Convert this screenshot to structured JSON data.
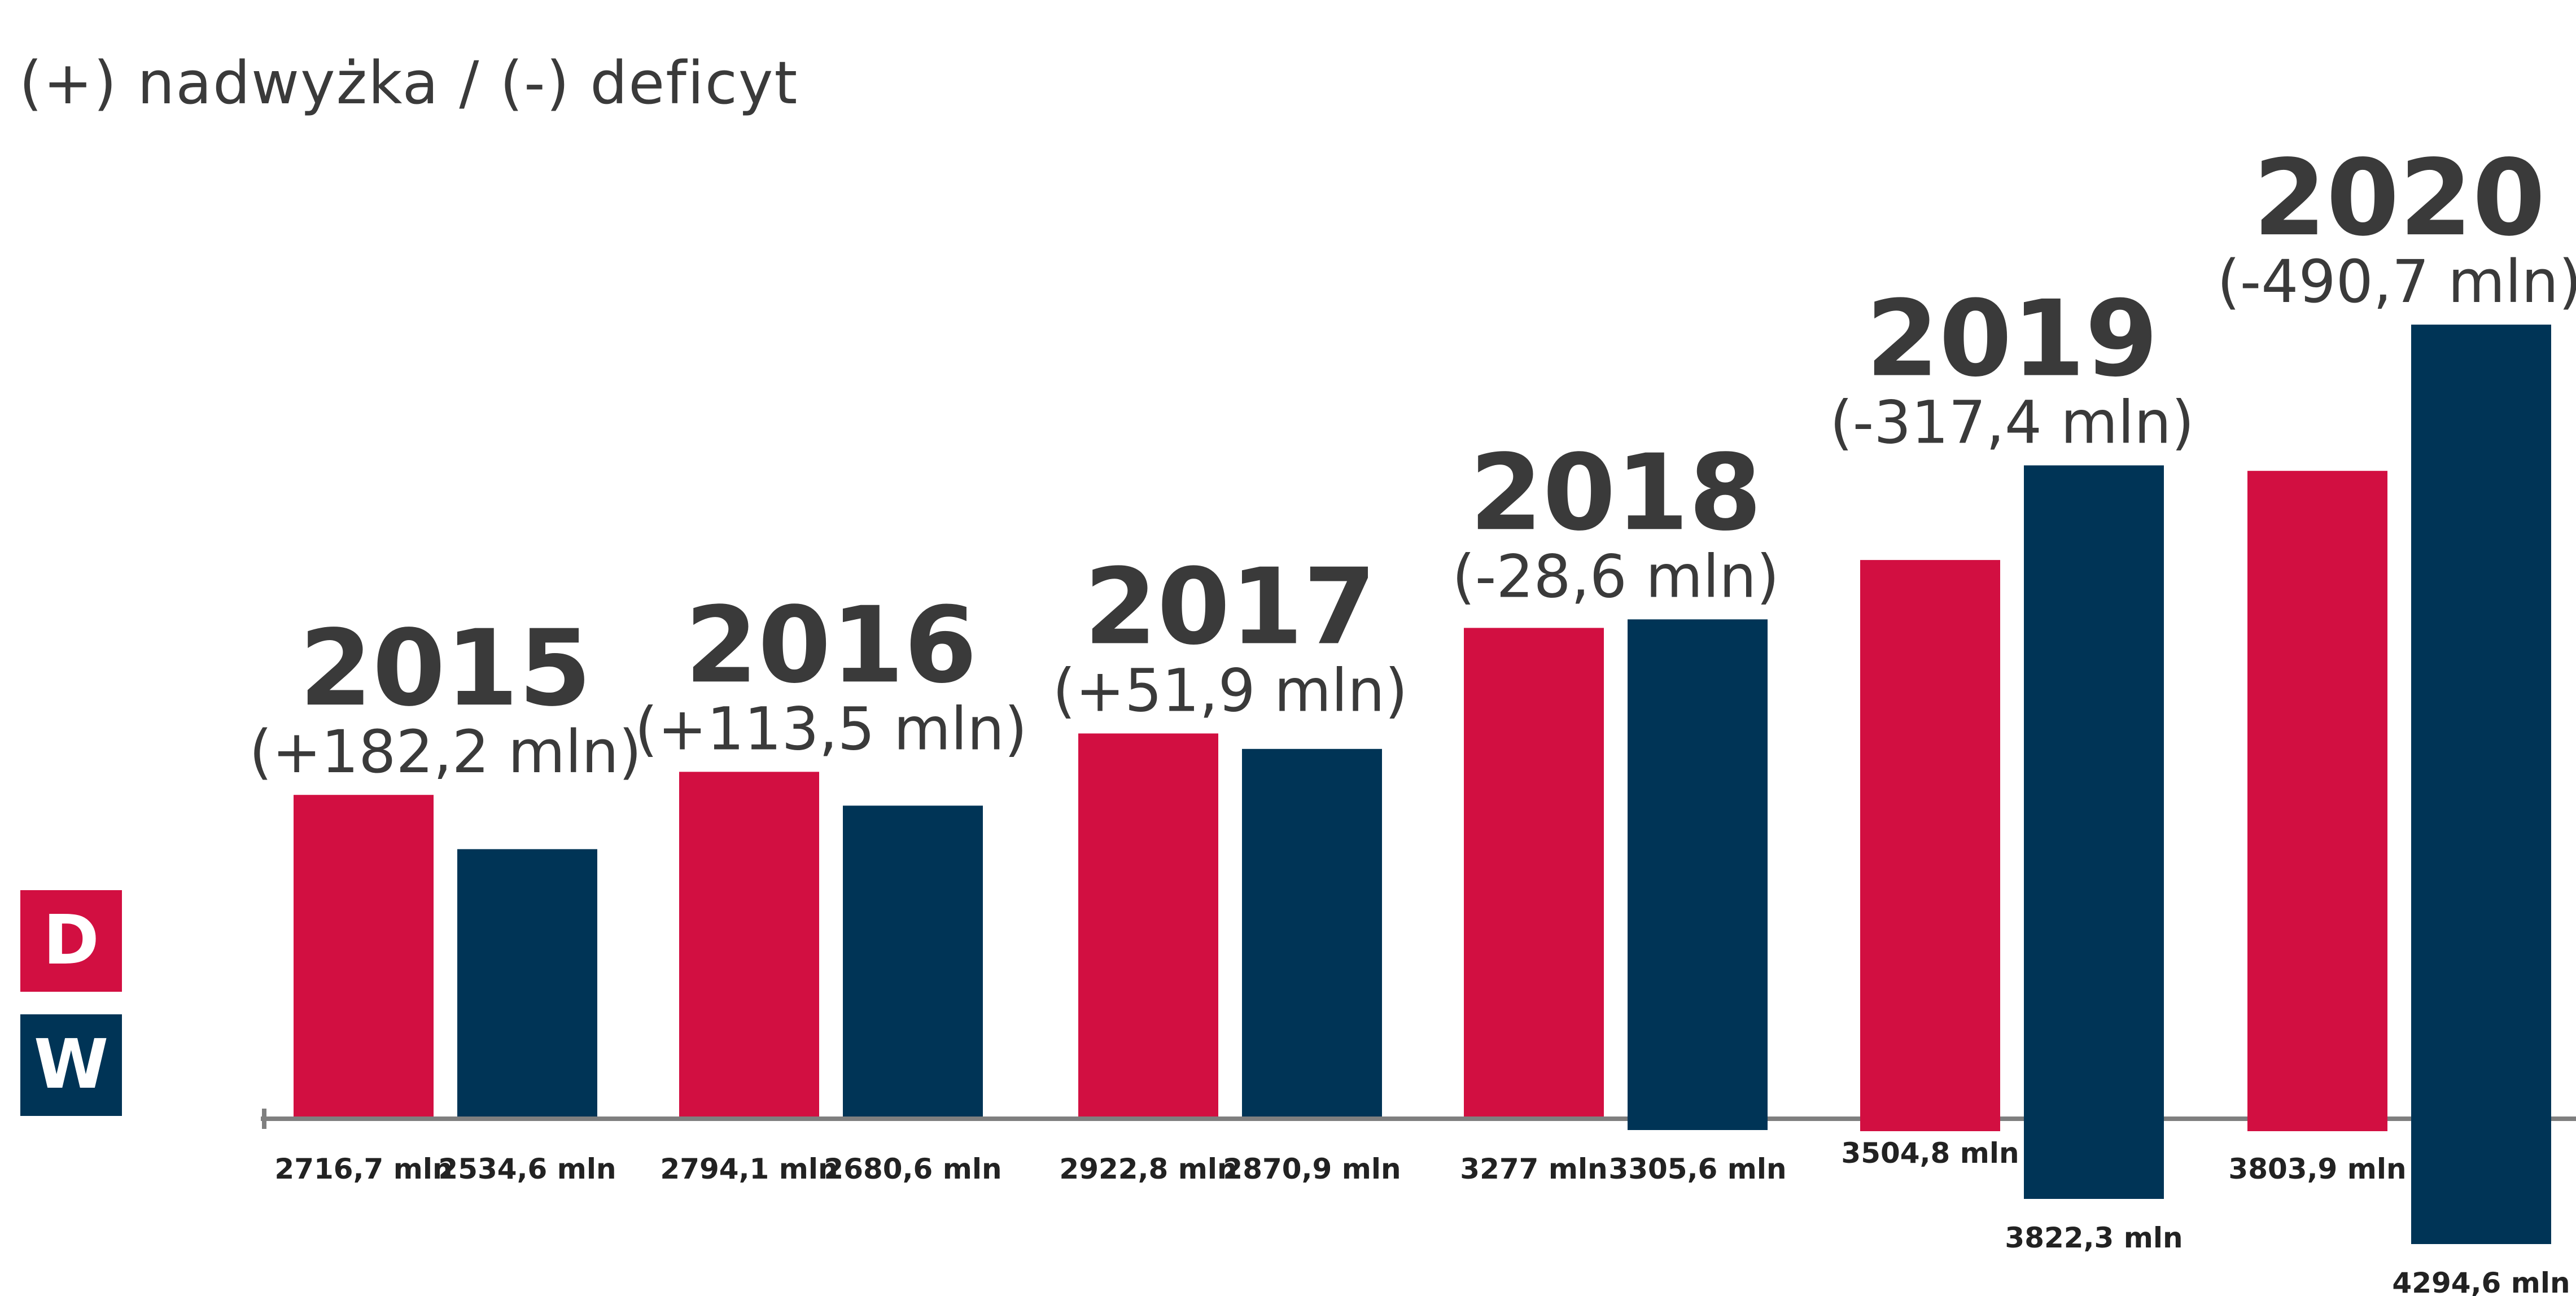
{
  "subtitle": "(+) nadwyżka / (-) deficyt",
  "colors": {
    "dochody": "#d20f41",
    "wydatki": "#003456",
    "text": "#3a3a3a",
    "axis": "#7f7f7f"
  },
  "legend": [
    {
      "key": "D",
      "color": "#d20f41"
    },
    {
      "key": "W",
      "color": "#003456"
    }
  ],
  "chart_data": {
    "type": "bar",
    "categories": [
      "2015",
      "2016",
      "2017",
      "2018",
      "2019",
      "2020"
    ],
    "balance_labels": [
      "(+182,2 mln)",
      "(+113,5 mln)",
      "(+51,9 mln)",
      "(-28,6 mln)",
      "(-317,4 mln)",
      "(-490,7 mln)"
    ],
    "series": [
      {
        "name": "D",
        "values": [
          2716.7,
          2794.1,
          2922.8,
          3277,
          3504.8,
          3803.9
        ],
        "labels": [
          "2716,7 mln",
          "2794,1 mln",
          "2922,8 mln",
          "3277 mln",
          "3504,8 mln",
          "3803,9 mln"
        ]
      },
      {
        "name": "W",
        "values": [
          2534.6,
          2680.6,
          2870.9,
          3305.6,
          3822.3,
          4294.6
        ],
        "labels": [
          "2534,6 mln",
          "2680,6 mln",
          "2870,9 mln",
          "3305,6 mln",
          "3822,3 mln",
          "4294,6 mln"
        ]
      }
    ],
    "unit": "mln"
  }
}
